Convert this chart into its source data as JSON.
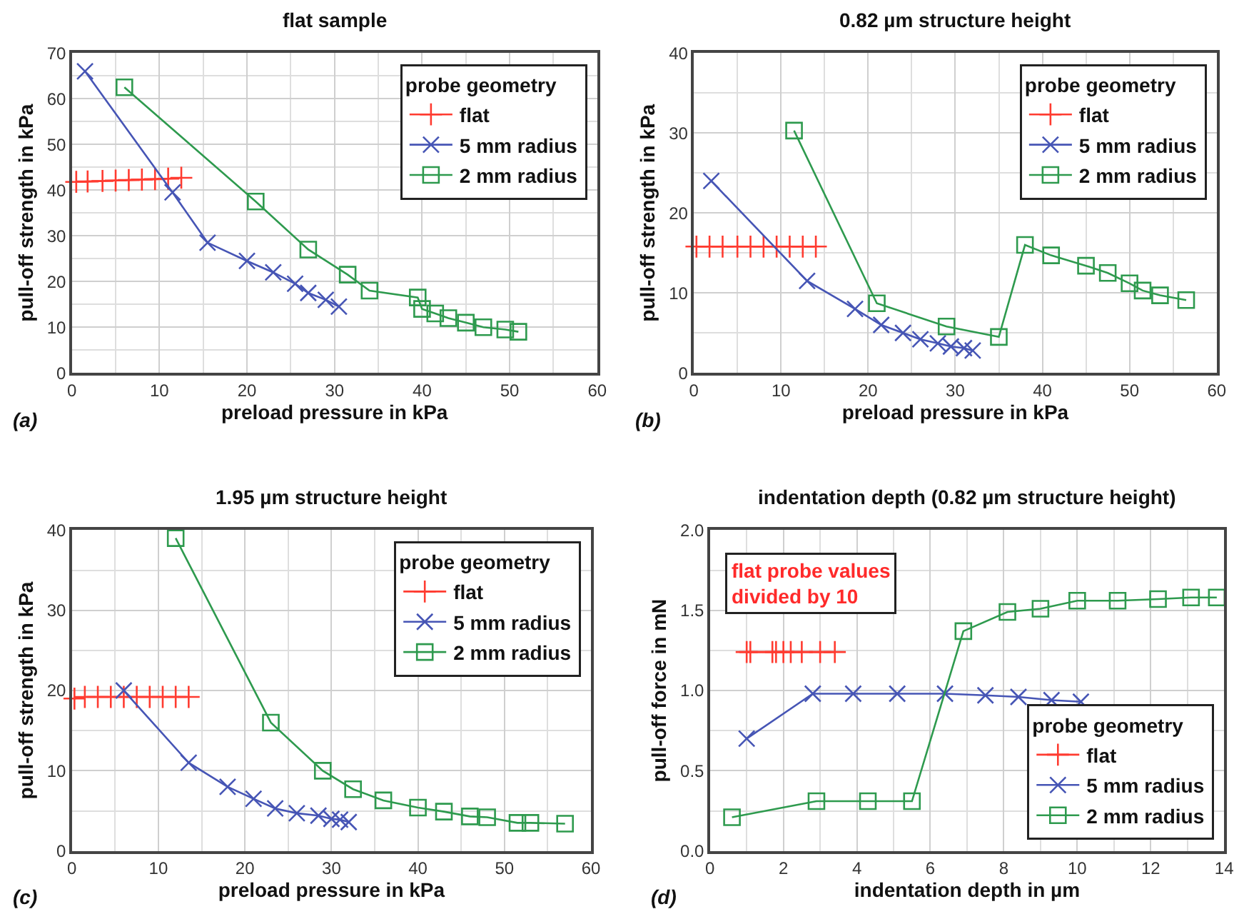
{
  "chart_data": [
    {
      "type": "line",
      "title": "flat sample",
      "xlabel": "preload pressure in kPa",
      "ylabel": "pull-off strength in kPa",
      "legend_title": "probe geometry",
      "legend": "top right",
      "grid": true,
      "xlim": [
        0,
        60
      ],
      "xticks": [
        0,
        10,
        20,
        30,
        40,
        50,
        60
      ],
      "ylim": [
        0,
        70
      ],
      "yticks": [
        0,
        10,
        20,
        30,
        40,
        50,
        60,
        70
      ],
      "annotations": [
        "(a)"
      ],
      "series": [
        {
          "name": "flat",
          "color": "#ff3b30",
          "marker": "cross",
          "x": [
            0.5,
            1.8,
            3.5,
            5,
            6.5,
            8,
            9.5,
            11,
            12.5
          ],
          "values": [
            41.8,
            41.9,
            42,
            42.1,
            42.2,
            42.3,
            42.4,
            42.5,
            42.7
          ]
        },
        {
          "name": "5 mm radius",
          "color": "#4655b5",
          "marker": "x",
          "x": [
            1.5,
            11.5,
            15.5,
            20,
            23,
            25.5,
            27,
            29,
            30.5
          ],
          "values": [
            66,
            39.5,
            28.5,
            24.5,
            22,
            19.5,
            17.5,
            16,
            14.5
          ]
        },
        {
          "name": "2 mm radius",
          "color": "#2e9a4e",
          "marker": "square",
          "x": [
            6,
            21,
            27,
            31.5,
            34,
            39.5,
            40,
            41.5,
            43,
            45,
            47,
            49.5,
            51
          ],
          "values": [
            62.5,
            37.5,
            27,
            21.5,
            18,
            16.5,
            14,
            13,
            12,
            11,
            10,
            9.5,
            9
          ]
        }
      ]
    },
    {
      "type": "line",
      "title": "0.82 µm structure height",
      "xlabel": "preload pressure in kPa",
      "ylabel": "pull-off strength in kPa",
      "legend_title": "probe geometry",
      "legend": "top right",
      "grid": true,
      "xlim": [
        0,
        60
      ],
      "xticks": [
        0,
        10,
        20,
        30,
        40,
        50,
        60
      ],
      "ylim": [
        0,
        40
      ],
      "yticks": [
        0,
        10,
        20,
        30,
        40
      ],
      "annotations": [
        "(b)"
      ],
      "series": [
        {
          "name": "flat",
          "color": "#ff3b30",
          "marker": "cross",
          "x": [
            0.3,
            1.8,
            3.3,
            5,
            6.5,
            8,
            9.5,
            11,
            12.5,
            14
          ],
          "values": [
            15.8,
            15.8,
            15.8,
            15.8,
            15.8,
            15.8,
            15.8,
            15.8,
            15.8,
            15.8
          ]
        },
        {
          "name": "5 mm radius",
          "color": "#4655b5",
          "marker": "x",
          "x": [
            2,
            13,
            18.5,
            21.5,
            24,
            26,
            28,
            29.5,
            31,
            32
          ],
          "values": [
            24,
            11.5,
            8,
            6,
            5,
            4.2,
            3.7,
            3.3,
            3.1,
            2.8
          ]
        },
        {
          "name": "2 mm radius",
          "color": "#2e9a4e",
          "marker": "square",
          "x": [
            11.5,
            21,
            29,
            35,
            38,
            41,
            45,
            47.5,
            50,
            51.5,
            53.5,
            56.5
          ],
          "values": [
            30.3,
            8.7,
            5.8,
            4.5,
            16,
            14.7,
            13.4,
            12.5,
            11.2,
            10.3,
            9.7,
            9.1
          ]
        }
      ]
    },
    {
      "type": "line",
      "title": "1.95 µm structure height",
      "xlabel": "preload pressure in kPa",
      "ylabel": "pull-off strength in kPa",
      "legend_title": "probe geometry",
      "legend": "top right",
      "grid": true,
      "xlim": [
        0,
        60
      ],
      "xticks": [
        0,
        10,
        20,
        30,
        40,
        50,
        60
      ],
      "ylim": [
        0,
        40
      ],
      "yticks": [
        0,
        10,
        20,
        30,
        40
      ],
      "annotations": [
        "(c)"
      ],
      "series": [
        {
          "name": "flat",
          "color": "#ff3b30",
          "marker": "cross",
          "x": [
            0.3,
            1.5,
            3,
            4.5,
            6,
            7.5,
            9,
            10.5,
            12,
            13.5
          ],
          "values": [
            19,
            19.2,
            19.2,
            19.2,
            19.2,
            19.2,
            19.2,
            19.2,
            19.2,
            19.2
          ]
        },
        {
          "name": "5 mm radius",
          "color": "#4655b5",
          "marker": "x",
          "x": [
            6,
            13.5,
            18,
            21,
            23.5,
            26,
            28.5,
            30,
            31,
            32
          ],
          "values": [
            20,
            11,
            8,
            6.5,
            5.3,
            4.7,
            4.4,
            4,
            3.9,
            3.6
          ]
        },
        {
          "name": "2 mm radius",
          "color": "#2e9a4e",
          "marker": "square",
          "x": [
            12,
            23,
            29,
            32.5,
            36,
            40,
            43,
            46,
            48,
            51.5,
            53,
            57
          ],
          "values": [
            39,
            16,
            10,
            7.7,
            6.3,
            5.4,
            4.9,
            4.3,
            4.2,
            3.5,
            3.5,
            3.4
          ]
        }
      ]
    },
    {
      "type": "line",
      "title": "indentation depth (0.82 µm structure height)",
      "xlabel": "indentation depth in µm",
      "ylabel": "pull-off force in mN",
      "legend_title": "probe geometry",
      "legend": "bottom right",
      "grid": true,
      "xlim": [
        0,
        14
      ],
      "xticks": [
        0,
        2,
        4,
        6,
        8,
        10,
        12,
        14
      ],
      "ylim": [
        0,
        2
      ],
      "yticks": [
        {
          "value": 0,
          "label": "0.0"
        },
        0.5,
        {
          "value": 1,
          "label": "1.0"
        },
        1.5,
        {
          "value": 2,
          "label": "2.0"
        }
      ],
      "annotations": [
        "(d)",
        "flat probe values\ndivided by 10"
      ],
      "series": [
        {
          "name": "flat",
          "color": "#ff3b30",
          "marker": "cross",
          "x": [
            1,
            1.1,
            1.7,
            1.8,
            2,
            2.2,
            2.5,
            3,
            3.4
          ],
          "values": [
            1.24,
            1.24,
            1.24,
            1.24,
            1.24,
            1.24,
            1.24,
            1.24,
            1.24
          ]
        },
        {
          "name": "5 mm radius",
          "color": "#4655b5",
          "marker": "x",
          "x": [
            1,
            2.8,
            3.9,
            5.1,
            6.4,
            7.5,
            8.4,
            9.3,
            10.1
          ],
          "values": [
            0.7,
            0.98,
            0.98,
            0.98,
            0.98,
            0.97,
            0.96,
            0.94,
            0.93
          ]
        },
        {
          "name": "2 mm radius",
          "color": "#2e9a4e",
          "marker": "square",
          "x": [
            0.6,
            2.9,
            4.3,
            5.5,
            6.9,
            8.1,
            9,
            10,
            11.1,
            12.2,
            13.1,
            13.8
          ],
          "values": [
            0.21,
            0.31,
            0.31,
            0.31,
            1.37,
            1.49,
            1.51,
            1.56,
            1.56,
            1.57,
            1.58,
            1.58
          ]
        }
      ]
    }
  ]
}
